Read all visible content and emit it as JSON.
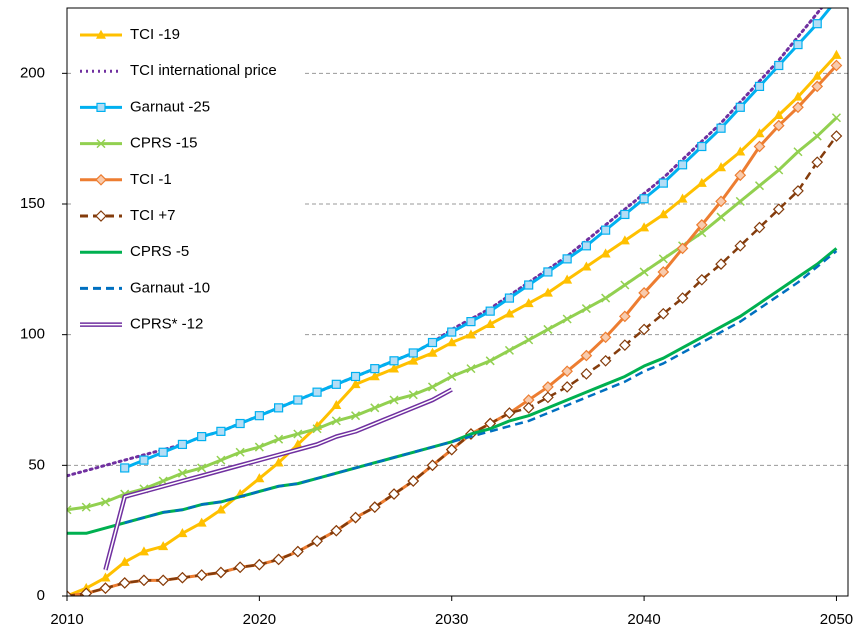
{
  "chart_data": {
    "type": "line",
    "x": [
      2010,
      2011,
      2012,
      2013,
      2014,
      2015,
      2016,
      2017,
      2018,
      2019,
      2020,
      2021,
      2022,
      2023,
      2024,
      2025,
      2026,
      2027,
      2028,
      2029,
      2030,
      2031,
      2032,
      2033,
      2034,
      2035,
      2036,
      2037,
      2038,
      2039,
      2040,
      2041,
      2042,
      2043,
      2044,
      2045,
      2046,
      2047,
      2048,
      2049,
      2050
    ],
    "xlim": [
      2010,
      2050.6
    ],
    "xticks": [
      2010,
      2020,
      2030,
      2040,
      2050
    ],
    "ylim": [
      0,
      225
    ],
    "yticks": [
      0,
      50,
      100,
      150,
      200
    ],
    "grid": true,
    "legend": "upper left",
    "series": [
      {
        "name": "TCI -19",
        "color": "#FFC000",
        "style": "solid",
        "marker": "triangle",
        "marker_fill": "#FFC000",
        "values": [
          0,
          3,
          7,
          13,
          17,
          19,
          24,
          28,
          33,
          39,
          45,
          51,
          58,
          65,
          73,
          81,
          84,
          87,
          90,
          93,
          97,
          100,
          104,
          108,
          112,
          116,
          121,
          126,
          131,
          136,
          141,
          146,
          152,
          158,
          164,
          170,
          177,
          184,
          191,
          199,
          207
        ]
      },
      {
        "name": "TCI international price",
        "color": "#7030A0",
        "style": "dotted",
        "marker": "none",
        "marker_fill": "none",
        "values": [
          46,
          48,
          50,
          52,
          54,
          56,
          58,
          61,
          63,
          66,
          69,
          72,
          75,
          78,
          81,
          84,
          87,
          90,
          93,
          97,
          102,
          106,
          110,
          115,
          120,
          125,
          130,
          136,
          142,
          148,
          154,
          160,
          167,
          174,
          181,
          189,
          197,
          205,
          214,
          223,
          232
        ]
      },
      {
        "name": "Garnaut -25",
        "color": "#00B0F0",
        "style": "solid",
        "marker": "square",
        "marker_fill": "#B4DDF5",
        "values": [
          null,
          null,
          null,
          49,
          52,
          55,
          58,
          61,
          63,
          66,
          69,
          72,
          75,
          78,
          81,
          84,
          87,
          90,
          93,
          97,
          101,
          105,
          109,
          114,
          119,
          124,
          129,
          134,
          140,
          146,
          152,
          158,
          165,
          172,
          179,
          187,
          195,
          203,
          211,
          219,
          228
        ]
      },
      {
        "name": "CPRS -15",
        "color": "#92D050",
        "style": "solid",
        "marker": "x",
        "marker_fill": "none",
        "values": [
          33,
          34,
          36,
          39,
          41,
          44,
          47,
          49,
          52,
          55,
          57,
          60,
          62,
          64,
          67,
          69,
          72,
          75,
          77,
          80,
          84,
          87,
          90,
          94,
          98,
          102,
          106,
          110,
          114,
          119,
          124,
          129,
          134,
          139,
          145,
          151,
          157,
          163,
          170,
          176,
          183
        ]
      },
      {
        "name": "TCI -1",
        "color": "#ED7D31",
        "style": "solid",
        "marker": "diamond",
        "marker_fill": "#F8CBAD",
        "values": [
          0,
          1,
          3,
          5,
          6,
          6,
          7,
          8,
          9,
          11,
          12,
          14,
          17,
          21,
          25,
          30,
          34,
          39,
          44,
          50,
          56,
          62,
          66,
          70,
          75,
          80,
          86,
          92,
          99,
          107,
          116,
          124,
          133,
          142,
          151,
          161,
          172,
          180,
          187,
          195,
          203
        ]
      },
      {
        "name": "TCI +7",
        "color": "#843C0C",
        "style": "dashed",
        "marker": "diamond",
        "marker_fill": "#FFFFFF",
        "values": [
          0,
          1,
          3,
          5,
          6,
          6,
          7,
          8,
          9,
          11,
          12,
          14,
          17,
          21,
          25,
          30,
          34,
          39,
          44,
          50,
          56,
          62,
          66,
          70,
          72,
          76,
          80,
          85,
          90,
          96,
          102,
          108,
          114,
          121,
          127,
          134,
          141,
          148,
          155,
          166,
          176
        ]
      },
      {
        "name": "CPRS -5",
        "color": "#00B050",
        "style": "solid",
        "marker": "none",
        "marker_fill": "none",
        "values": [
          24,
          24,
          26,
          28,
          30,
          32,
          33,
          35,
          36,
          38,
          40,
          42,
          43,
          45,
          47,
          49,
          51,
          53,
          55,
          57,
          59,
          62,
          64,
          67,
          69,
          72,
          75,
          78,
          81,
          84,
          88,
          91,
          95,
          99,
          103,
          107,
          112,
          117,
          122,
          127,
          133
        ]
      },
      {
        "name": "Garnaut -10",
        "color": "#0070C0",
        "style": "dashed",
        "marker": "none",
        "marker_fill": "none",
        "values": [
          null,
          null,
          null,
          28,
          30,
          32,
          33,
          35,
          36,
          38,
          40,
          42,
          43,
          45,
          47,
          49,
          51,
          53,
          55,
          57,
          59,
          61,
          63,
          65,
          67,
          70,
          73,
          76,
          79,
          82,
          86,
          89,
          93,
          97,
          101,
          105,
          110,
          115,
          120,
          126,
          132
        ]
      },
      {
        "name": "CPRS* -12",
        "color": "#7030A0",
        "style": "double",
        "marker": "none",
        "marker_fill": "none",
        "values": [
          null,
          null,
          10,
          38,
          40,
          42,
          44,
          46,
          48,
          50,
          52,
          54,
          56,
          58,
          61,
          63,
          66,
          69,
          72,
          75,
          79,
          null,
          null,
          null,
          null,
          null,
          null,
          null,
          null,
          null,
          null,
          null,
          null,
          null,
          null,
          null,
          null,
          null,
          null,
          null,
          null
        ]
      }
    ]
  }
}
